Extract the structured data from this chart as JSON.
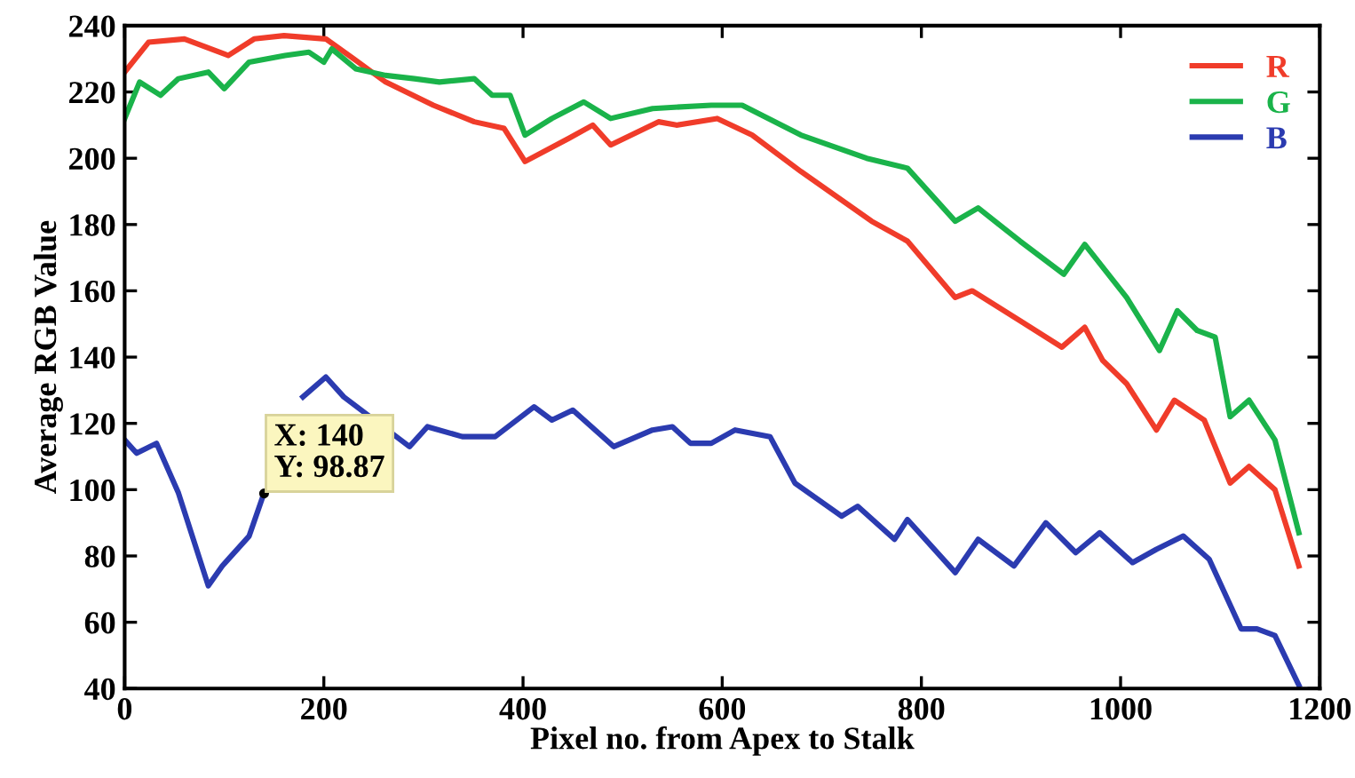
{
  "chart_data": {
    "type": "line",
    "xlabel": "Pixel no. from Apex to Stalk",
    "ylabel": "Average RGB Value",
    "xlim": [
      0,
      1200
    ],
    "xticks": [
      0,
      200,
      400,
      600,
      800,
      1000,
      1200
    ],
    "ylim": [
      40,
      240
    ],
    "yticks": [
      40,
      60,
      80,
      100,
      120,
      140,
      160,
      180,
      200,
      220,
      240
    ],
    "grid": false,
    "legend": "top right",
    "marker": "none",
    "line_style": "solid",
    "annotations": [
      {
        "text": "X: 140\nY: 98.87",
        "x": 140,
        "y": 98.87
      }
    ],
    "series": [
      {
        "name": "R",
        "color": "#f03c2a",
        "x": [
          0,
          24,
          60,
          104,
          130,
          160,
          202,
          230,
          262,
          310,
          351,
          381,
          402,
          446,
          470,
          488,
          536,
          554,
          595,
          630,
          679,
          750,
          786,
          834,
          851,
          899,
          941,
          964,
          982,
          1006,
          1036,
          1054,
          1084,
          1110,
          1129,
          1155,
          1179
        ],
        "values": [
          226,
          235,
          236,
          231,
          236,
          237,
          236,
          230,
          223,
          216,
          211,
          209,
          199,
          206,
          210,
          204,
          211,
          210,
          212,
          207,
          196,
          181,
          175,
          158,
          160,
          151,
          143,
          149,
          139,
          132,
          118,
          127,
          121,
          102,
          107,
          100,
          77
        ]
      },
      {
        "name": "G",
        "color": "#1ab34a",
        "x": [
          0,
          15,
          36,
          54,
          84,
          100,
          125,
          161,
          185,
          200,
          208,
          232,
          262,
          291,
          316,
          351,
          369,
          387,
          402,
          429,
          461,
          488,
          530,
          589,
          620,
          679,
          745,
          786,
          834,
          857,
          899,
          943,
          964,
          1006,
          1039,
          1057,
          1077,
          1095,
          1110,
          1129,
          1155,
          1179
        ],
        "values": [
          212,
          223,
          219,
          224,
          226,
          221,
          229,
          231,
          232,
          229,
          233,
          227,
          225,
          224,
          223,
          224,
          219,
          219,
          207,
          212,
          217,
          212,
          215,
          216,
          216,
          207,
          200,
          197,
          181,
          185,
          175,
          165,
          174,
          158,
          142,
          154,
          148,
          146,
          122,
          127,
          115,
          87
        ]
      },
      {
        "name": "B",
        "color": "#2b3bb0",
        "x": [
          0,
          12,
          32,
          54,
          84,
          98,
          125,
          140,
          146,
          179,
          202,
          220,
          286,
          304,
          339,
          372,
          411,
          429,
          450,
          491,
          530,
          550,
          568,
          589,
          613,
          648,
          673,
          720,
          736,
          773,
          786,
          834,
          857,
          893,
          925,
          955,
          979,
          1012,
          1036,
          1063,
          1089,
          1121,
          1137,
          1155,
          1179
        ],
        "values": [
          115,
          111,
          114,
          99,
          71,
          77,
          86,
          99,
          null,
          128,
          134,
          128,
          113,
          119,
          116,
          116,
          125,
          121,
          124,
          113,
          118,
          119,
          114,
          114,
          118,
          116,
          102,
          92,
          95,
          85,
          91,
          75,
          85,
          77,
          90,
          81,
          87,
          78,
          82,
          86,
          79,
          58,
          58,
          56,
          41
        ]
      }
    ]
  }
}
